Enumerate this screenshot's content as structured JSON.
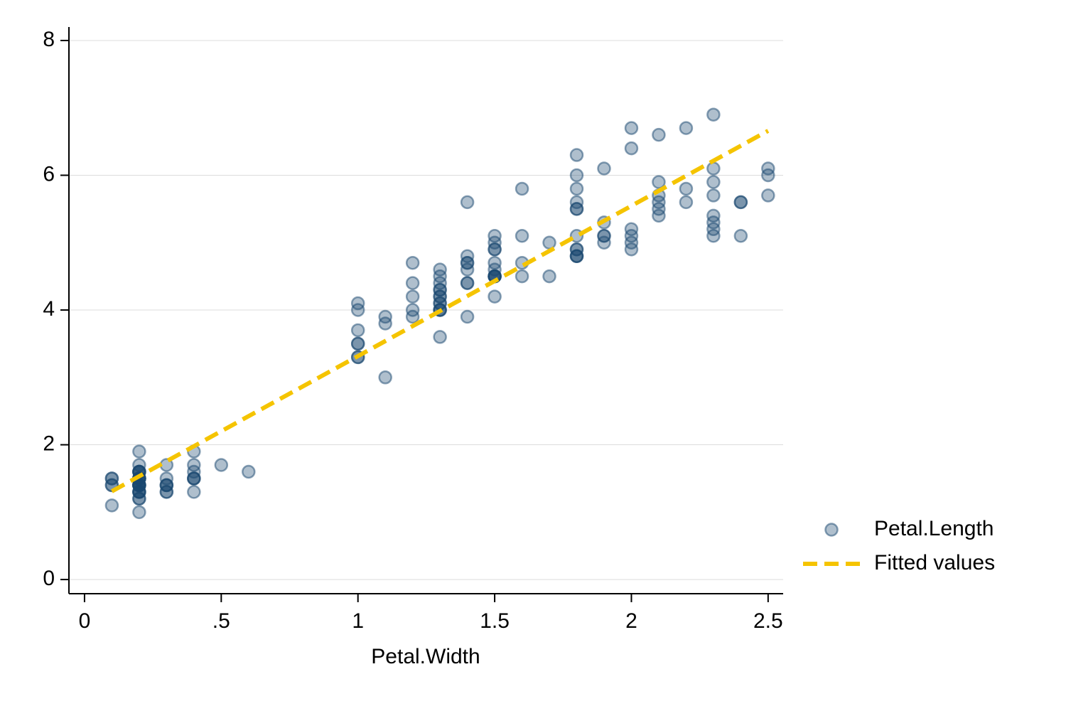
{
  "chart_data": {
    "type": "scatter",
    "x_label": "Petal.Width",
    "xlim": [
      -0.057,
      2.555
    ],
    "ylim": [
      -0.21,
      8.2
    ],
    "xticks": [
      0,
      {
        "value": 0.5,
        "label": ".5"
      },
      1,
      1.5,
      2,
      2.5
    ],
    "yticks": [
      0,
      2,
      4,
      6,
      8
    ],
    "grid": true,
    "legend": "right",
    "series": [
      {
        "name": "Petal.Length",
        "type": "scatter",
        "color": "#1a476f",
        "x": [
          0.2,
          0.2,
          0.2,
          0.2,
          0.2,
          0.4,
          0.3,
          0.2,
          0.2,
          0.1,
          0.2,
          0.2,
          0.1,
          0.1,
          0.2,
          0.4,
          0.4,
          0.3,
          0.3,
          0.3,
          0.2,
          0.4,
          0.2,
          0.5,
          0.2,
          0.2,
          0.4,
          0.2,
          0.2,
          0.2,
          0.2,
          0.4,
          0.1,
          0.2,
          0.2,
          0.2,
          0.2,
          0.1,
          0.2,
          0.2,
          0.3,
          0.3,
          0.2,
          0.6,
          0.4,
          0.3,
          0.2,
          0.2,
          0.2,
          0.2,
          1.4,
          1.5,
          1.5,
          1.3,
          1.5,
          1.3,
          1.6,
          1.0,
          1.3,
          1.4,
          1.0,
          1.5,
          1.0,
          1.4,
          1.3,
          1.4,
          1.5,
          1.0,
          1.5,
          1.1,
          1.8,
          1.3,
          1.5,
          1.2,
          1.3,
          1.4,
          1.4,
          1.7,
          1.5,
          1.0,
          1.1,
          1.0,
          1.2,
          1.6,
          1.5,
          1.6,
          1.5,
          1.3,
          1.3,
          1.3,
          1.2,
          1.4,
          1.2,
          1.0,
          1.3,
          1.2,
          1.3,
          1.3,
          1.1,
          1.3,
          2.5,
          1.9,
          2.1,
          1.8,
          2.2,
          2.1,
          1.7,
          1.8,
          1.8,
          2.5,
          2.0,
          1.9,
          2.1,
          2.0,
          2.4,
          2.3,
          1.8,
          2.2,
          2.3,
          1.5,
          2.3,
          2.0,
          2.0,
          1.8,
          2.1,
          1.8,
          1.8,
          1.8,
          2.1,
          1.6,
          1.9,
          2.0,
          2.2,
          1.5,
          1.4,
          2.3,
          2.4,
          1.8,
          1.8,
          2.1,
          2.4,
          2.3,
          1.9,
          2.3,
          2.5,
          2.3,
          1.9,
          2.0,
          2.3,
          1.8
        ],
        "values": [
          1.4,
          1.4,
          1.3,
          1.5,
          1.4,
          1.7,
          1.4,
          1.5,
          1.4,
          1.5,
          1.5,
          1.6,
          1.4,
          1.1,
          1.2,
          1.5,
          1.3,
          1.4,
          1.7,
          1.5,
          1.7,
          1.5,
          1.0,
          1.7,
          1.9,
          1.6,
          1.6,
          1.5,
          1.4,
          1.6,
          1.6,
          1.5,
          1.5,
          1.4,
          1.5,
          1.2,
          1.3,
          1.4,
          1.3,
          1.5,
          1.3,
          1.3,
          1.3,
          1.6,
          1.9,
          1.4,
          1.6,
          1.4,
          1.5,
          1.4,
          4.7,
          4.5,
          4.9,
          4.0,
          4.6,
          4.5,
          4.7,
          3.3,
          4.6,
          3.9,
          3.5,
          4.2,
          4.0,
          4.7,
          3.6,
          4.4,
          4.5,
          4.1,
          4.5,
          3.9,
          4.8,
          4.0,
          4.9,
          4.7,
          4.3,
          4.4,
          4.8,
          5.0,
          4.5,
          3.5,
          3.8,
          3.7,
          3.9,
          5.1,
          4.5,
          4.5,
          4.7,
          4.4,
          4.1,
          4.0,
          4.4,
          4.6,
          4.0,
          3.3,
          4.2,
          4.2,
          4.2,
          4.3,
          3.0,
          4.1,
          6.0,
          5.1,
          5.9,
          5.6,
          5.8,
          6.6,
          4.5,
          6.3,
          5.8,
          6.1,
          5.1,
          5.3,
          5.5,
          5.0,
          5.1,
          5.3,
          5.5,
          6.7,
          6.9,
          5.0,
          5.7,
          4.9,
          6.7,
          4.9,
          5.7,
          6.0,
          4.8,
          4.9,
          5.6,
          5.8,
          6.1,
          6.4,
          5.6,
          5.1,
          5.6,
          6.1,
          5.6,
          5.5,
          4.8,
          5.4,
          5.6,
          5.1,
          5.1,
          5.9,
          5.7,
          5.2,
          5.0,
          5.2,
          5.4,
          5.1
        ]
      },
      {
        "name": "Fitted values",
        "type": "line",
        "color": "#f5c400",
        "x": [
          0.1,
          2.5
        ],
        "values": [
          1.31,
          6.66
        ]
      }
    ]
  }
}
